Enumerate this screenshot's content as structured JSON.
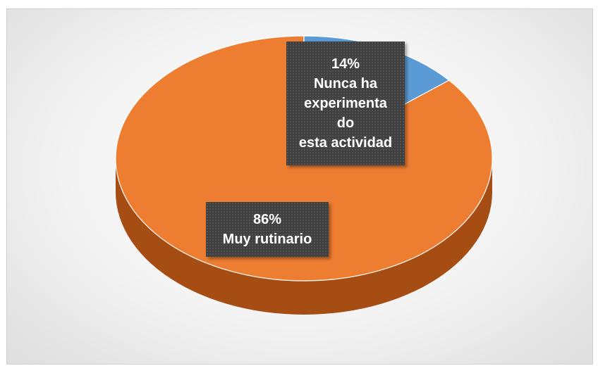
{
  "chart_data": {
    "type": "pie",
    "style": "3d",
    "slices": [
      {
        "name": "Nunca ha experimentado esta actividad",
        "value": 14,
        "percent_label": "14%",
        "label_lines": [
          "Nunca ha",
          "experimenta",
          "do",
          "esta actividad"
        ],
        "color": "#5b9bd5",
        "side_color": "#41729f"
      },
      {
        "name": "Muy rutinario",
        "value": 86,
        "percent_label": "86%",
        "label_lines": [
          "Muy rutinario"
        ],
        "color": "#ed7d31",
        "side_color": "#a64d14"
      }
    ]
  }
}
